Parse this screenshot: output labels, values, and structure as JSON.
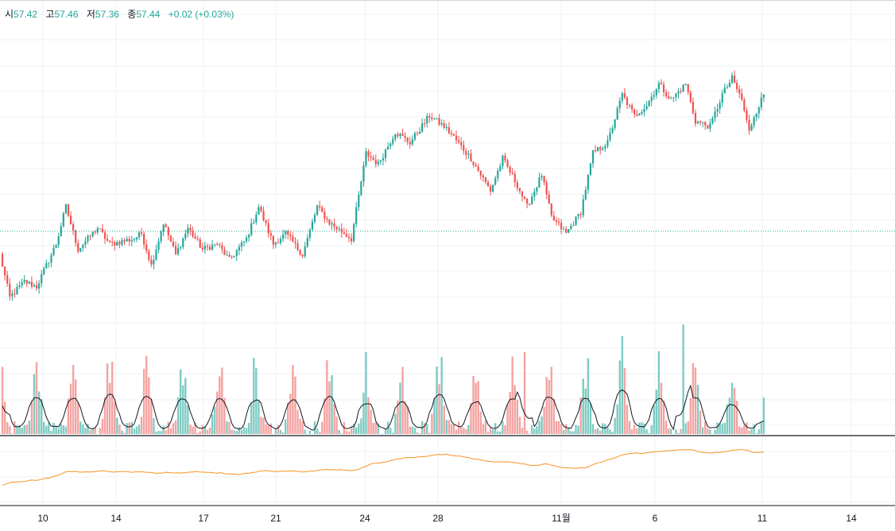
{
  "legend": {
    "open_label": "시",
    "open": "57.42",
    "high_label": "고",
    "high": "57.46",
    "low_label": "저",
    "low": "57.36",
    "close_label": "종",
    "close": "57.44",
    "change": "+0.02 (+0.03%)"
  },
  "colors": {
    "up": "#26a69a",
    "down": "#ef5350",
    "up_volume": "#7fcbc3",
    "down_volume": "#f4a3a1",
    "volume_ma": "#131722",
    "indicator": "#f7931e",
    "grid": "#eef1f6",
    "price_line": "#26a69a",
    "axis_text": "#131722"
  },
  "chart_data": {
    "type": "candlestick",
    "x_tick_labels": [
      "10",
      "14",
      "17",
      "21",
      "24",
      "28",
      "11월",
      "6",
      "11",
      "14"
    ],
    "price_anchors": [
      [
        0,
        57.0
      ],
      [
        4,
        56.2
      ],
      [
        10,
        56.5
      ],
      [
        15,
        56.4
      ],
      [
        23,
        57.2
      ],
      [
        27,
        57.9
      ],
      [
        32,
        57.1
      ],
      [
        40,
        57.5
      ],
      [
        45,
        57.2
      ],
      [
        55,
        57.3
      ],
      [
        58,
        57.4
      ],
      [
        62,
        56.8
      ],
      [
        67,
        57.6
      ],
      [
        72,
        57.0
      ],
      [
        77,
        57.5
      ],
      [
        83,
        57.1
      ],
      [
        89,
        57.2
      ],
      [
        94,
        56.9
      ],
      [
        101,
        57.3
      ],
      [
        106,
        57.9
      ],
      [
        112,
        57.2
      ],
      [
        117,
        57.4
      ],
      [
        124,
        57.0
      ],
      [
        130,
        57.9
      ],
      [
        135,
        57.6
      ],
      [
        144,
        57.3
      ],
      [
        150,
        58.9
      ],
      [
        155,
        58.7
      ],
      [
        162,
        59.3
      ],
      [
        168,
        59.1
      ],
      [
        176,
        59.6
      ],
      [
        182,
        59.4
      ],
      [
        186,
        59.2
      ],
      [
        193,
        58.8
      ],
      [
        201,
        58.2
      ],
      [
        206,
        58.8
      ],
      [
        212,
        58.3
      ],
      [
        216,
        57.9
      ],
      [
        222,
        58.5
      ],
      [
        226,
        57.7
      ],
      [
        232,
        57.4
      ],
      [
        238,
        57.8
      ],
      [
        243,
        58.9
      ],
      [
        249,
        59.1
      ],
      [
        255,
        60.0
      ],
      [
        260,
        59.6
      ],
      [
        265,
        59.8
      ],
      [
        270,
        60.2
      ],
      [
        275,
        59.9
      ],
      [
        281,
        60.2
      ],
      [
        285,
        59.5
      ],
      [
        291,
        59.4
      ],
      [
        296,
        60.0
      ],
      [
        300,
        60.3
      ],
      [
        304,
        59.9
      ],
      [
        307,
        59.3
      ],
      [
        309,
        59.6
      ],
      [
        313,
        60.0
      ]
    ],
    "price_range": [
      55.4,
      60.95
    ],
    "last_close": 57.44,
    "indicator_range": [
      -1.0,
      2.25
    ],
    "volume_peak_cycle": 15,
    "series": [
      {
        "name": "OHLC",
        "kind": "candles"
      },
      {
        "name": "Volume",
        "kind": "histogram"
      },
      {
        "name": "Volume MA",
        "kind": "line"
      },
      {
        "name": "Lower indicator",
        "kind": "line"
      }
    ]
  }
}
